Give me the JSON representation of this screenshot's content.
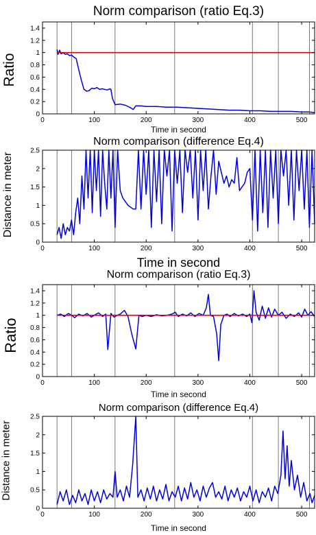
{
  "chart_data": [
    {
      "type": "line",
      "title": "Norm comparison (ratio Eq.3)",
      "xlabel": "Time in second",
      "ylabel": "Ratio",
      "xlim": [
        0,
        525
      ],
      "ylim": [
        0,
        1.5
      ],
      "xticks": [
        0,
        100,
        200,
        300,
        400,
        500
      ],
      "yticks": [
        0,
        0.2,
        0.4,
        0.6,
        0.8,
        1,
        1.2,
        1.4
      ],
      "vlines": [
        28,
        56,
        140,
        255,
        405,
        455,
        515
      ],
      "reference_line": 1,
      "grid": false,
      "series": [
        {
          "color": "#0000dd",
          "x": [
            28,
            30,
            33,
            36,
            40,
            44,
            48,
            52,
            56,
            60,
            65,
            70,
            75,
            80,
            85,
            90,
            95,
            100,
            105,
            110,
            115,
            120,
            125,
            130,
            132,
            135,
            140,
            150,
            160,
            170,
            175,
            180,
            190,
            200,
            220,
            240,
            260,
            280,
            300,
            320,
            340,
            360,
            380,
            400,
            420,
            440,
            460,
            480,
            500,
            515,
            525
          ],
          "y": [
            1.05,
            0.97,
            1.04,
            0.98,
            1.0,
            0.97,
            0.98,
            0.95,
            0.96,
            0.93,
            0.9,
            0.72,
            0.55,
            0.4,
            0.37,
            0.38,
            0.42,
            0.41,
            0.43,
            0.4,
            0.41,
            0.4,
            0.39,
            0.41,
            0.4,
            0.25,
            0.15,
            0.16,
            0.14,
            0.1,
            0.07,
            0.13,
            0.13,
            0.12,
            0.12,
            0.11,
            0.11,
            0.1,
            0.09,
            0.08,
            0.07,
            0.06,
            0.06,
            0.05,
            0.05,
            0.04,
            0.04,
            0.04,
            0.03,
            0.03,
            0.02
          ]
        },
        {
          "color": "#dd0000",
          "x": [
            28,
            525
          ],
          "y": [
            1,
            1
          ]
        }
      ]
    },
    {
      "type": "line",
      "title": "Norm comparison (difference Eq.4)",
      "xlabel": "Time in second",
      "ylabel": "Distance in meter",
      "xlim": [
        0,
        525
      ],
      "ylim": [
        0,
        2.5
      ],
      "xticks": [
        0,
        100,
        200,
        300,
        400,
        500
      ],
      "yticks": [
        0,
        0.5,
        1,
        1.5,
        2,
        2.5
      ],
      "vlines": [
        28,
        56,
        140,
        255,
        405,
        455,
        515
      ],
      "grid": false,
      "series": [
        {
          "color": "#0000dd",
          "x": [
            28,
            32,
            36,
            40,
            44,
            48,
            52,
            56,
            60,
            64,
            68,
            72,
            76,
            80,
            84,
            88,
            92,
            96,
            100,
            104,
            108,
            112,
            116,
            120,
            124,
            128,
            132,
            136,
            140,
            145,
            150,
            155,
            165,
            175,
            180,
            185,
            190,
            195,
            200,
            205,
            210,
            215,
            220,
            225,
            230,
            235,
            240,
            245,
            250,
            255,
            260,
            265,
            270,
            275,
            280,
            285,
            290,
            295,
            300,
            305,
            310,
            315,
            320,
            325,
            330,
            335,
            340,
            345,
            350,
            355,
            360,
            365,
            370,
            375,
            380,
            385,
            390,
            395,
            400,
            405,
            410,
            415,
            420,
            425,
            430,
            435,
            440,
            445,
            450,
            455,
            460,
            465,
            470,
            475,
            480,
            485,
            490,
            495,
            500,
            505,
            510,
            515,
            520,
            525
          ],
          "y": [
            0.2,
            0.4,
            0.1,
            0.5,
            0.2,
            0.4,
            0.3,
            0.6,
            0.2,
            0.8,
            1.2,
            0.5,
            1.8,
            0.9,
            2.5,
            1.2,
            2.5,
            0.8,
            2.5,
            1.4,
            2.5,
            0.7,
            2.5,
            1.6,
            0.9,
            2.5,
            1.2,
            2.5,
            0.4,
            2.5,
            1.4,
            1.2,
            1.0,
            0.9,
            0.9,
            2.5,
            0.9,
            2.5,
            1.3,
            2.5,
            0.4,
            2.5,
            1.1,
            2.5,
            0.5,
            2.5,
            1.8,
            2.5,
            0.3,
            2.5,
            1.6,
            2.5,
            0.8,
            2.5,
            1.9,
            2.5,
            1.2,
            2.5,
            0.6,
            2.5,
            1.4,
            2.5,
            0.9,
            1.8,
            2.5,
            1.3,
            2.2,
            1.9,
            1.6,
            1.8,
            1.5,
            1.7,
            1.6,
            2.3,
            1.4,
            1.5,
            1.6,
            1.9,
            2.0,
            0.6,
            2.5,
            0.3,
            2.5,
            0.8,
            2.5,
            0.4,
            2.5,
            1.2,
            2.5,
            0.5,
            2.5,
            1.8,
            2.5,
            1.0,
            2.5,
            0.6,
            2.5,
            1.4,
            2.5,
            0.9,
            2.5,
            0.4,
            2.5,
            0.5
          ]
        }
      ]
    },
    {
      "type": "line",
      "title": "Norm comparison (ratio Eq.3)",
      "xlabel": "Time in second",
      "ylabel": "Ratio",
      "xlim": [
        0,
        525
      ],
      "ylim": [
        0,
        1.5
      ],
      "xticks": [
        0,
        100,
        200,
        300,
        400,
        500
      ],
      "yticks": [
        0,
        0.2,
        0.4,
        0.6,
        0.8,
        1,
        1.2,
        1.4
      ],
      "vlines": [
        28,
        56,
        140,
        255,
        405,
        455,
        515
      ],
      "reference_line": 1,
      "grid": false,
      "series": [
        {
          "color": "#0000dd",
          "x": [
            28,
            35,
            42,
            50,
            56,
            62,
            70,
            78,
            86,
            94,
            100,
            108,
            116,
            122,
            126,
            132,
            138,
            144,
            150,
            158,
            165,
            172,
            180,
            186,
            192,
            200,
            210,
            220,
            230,
            240,
            250,
            256,
            262,
            270,
            278,
            286,
            294,
            302,
            310,
            316,
            320,
            324,
            330,
            336,
            340,
            344,
            350,
            356,
            362,
            370,
            378,
            386,
            394,
            400,
            404,
            408,
            412,
            418,
            424,
            430,
            436,
            442,
            448,
            455,
            462,
            470,
            478,
            486,
            494,
            500,
            506,
            512,
            518,
            525
          ],
          "y": [
            1.0,
            1.02,
            0.98,
            1.03,
            1.0,
            0.96,
            1.02,
            0.99,
            1.03,
            0.97,
            1.0,
            1.04,
            0.98,
            1.02,
            0.44,
            1.03,
            0.97,
            1.0,
            1.02,
            1.08,
            0.98,
            0.7,
            0.45,
            1.0,
            0.98,
            1.0,
            0.98,
            1.01,
            0.99,
            1.0,
            1.02,
            1.05,
            0.98,
            1.02,
            0.99,
            1.04,
            0.98,
            1.03,
            1.0,
            1.12,
            1.34,
            1.0,
            0.98,
            0.7,
            0.26,
            0.85,
            1.0,
            1.02,
            0.98,
            1.03,
            0.99,
            1.02,
            0.98,
            1.02,
            0.88,
            1.4,
            1.05,
            0.92,
            1.15,
            0.95,
            1.12,
            0.97,
            1.1,
            1.0,
            1.05,
            0.95,
            1.02,
            0.98,
            1.04,
            0.97,
            1.1,
            1.0,
            1.06,
            0.98
          ]
        },
        {
          "color": "#dd0000",
          "x": [
            28,
            525
          ],
          "y": [
            1,
            1
          ]
        }
      ]
    },
    {
      "type": "line",
      "title": "Norm comparison (difference Eq.4)",
      "xlabel": "Time in second",
      "ylabel": "Distance in meter",
      "xlim": [
        0,
        525
      ],
      "ylim": [
        0,
        2.5
      ],
      "xticks": [
        0,
        100,
        200,
        300,
        400,
        500
      ],
      "yticks": [
        0,
        0.5,
        1,
        1.5,
        2,
        2.5
      ],
      "vlines": [
        28,
        56,
        140,
        255,
        405,
        455,
        515
      ],
      "grid": false,
      "series": [
        {
          "color": "#0000dd",
          "x": [
            28,
            34,
            40,
            46,
            52,
            58,
            64,
            70,
            76,
            82,
            88,
            94,
            100,
            106,
            112,
            118,
            124,
            130,
            136,
            140,
            144,
            150,
            156,
            162,
            168,
            174,
            180,
            184,
            190,
            196,
            202,
            208,
            214,
            220,
            226,
            232,
            238,
            244,
            250,
            256,
            262,
            268,
            274,
            280,
            286,
            292,
            298,
            304,
            310,
            316,
            322,
            328,
            334,
            340,
            346,
            352,
            358,
            364,
            370,
            376,
            382,
            388,
            394,
            400,
            406,
            412,
            418,
            424,
            430,
            436,
            442,
            448,
            454,
            460,
            464,
            468,
            472,
            476,
            480,
            486,
            492,
            498,
            504,
            510,
            516,
            520,
            525
          ],
          "y": [
            0.1,
            0.45,
            0.2,
            0.5,
            0.1,
            0.35,
            0.15,
            0.5,
            0.2,
            0.4,
            0.1,
            0.5,
            0.2,
            0.45,
            0.15,
            0.5,
            0.25,
            0.4,
            0.3,
            1.0,
            0.3,
            0.5,
            0.2,
            0.6,
            0.3,
            1.2,
            2.5,
            0.3,
            0.5,
            0.2,
            0.55,
            0.25,
            0.6,
            0.2,
            0.5,
            0.25,
            0.65,
            0.2,
            0.45,
            0.3,
            0.6,
            0.2,
            0.55,
            0.25,
            0.7,
            0.3,
            0.5,
            0.2,
            0.6,
            0.3,
            0.55,
            0.7,
            0.3,
            0.45,
            0.25,
            0.6,
            0.2,
            0.5,
            0.3,
            0.55,
            0.2,
            0.45,
            0.3,
            0.6,
            0.2,
            0.5,
            0.15,
            0.45,
            0.3,
            0.55,
            0.2,
            0.6,
            0.4,
            0.9,
            2.1,
            0.8,
            1.7,
            0.6,
            1.3,
            0.5,
            0.9,
            0.3,
            0.7,
            0.2,
            0.4,
            0.15,
            0.35
          ]
        }
      ]
    }
  ]
}
